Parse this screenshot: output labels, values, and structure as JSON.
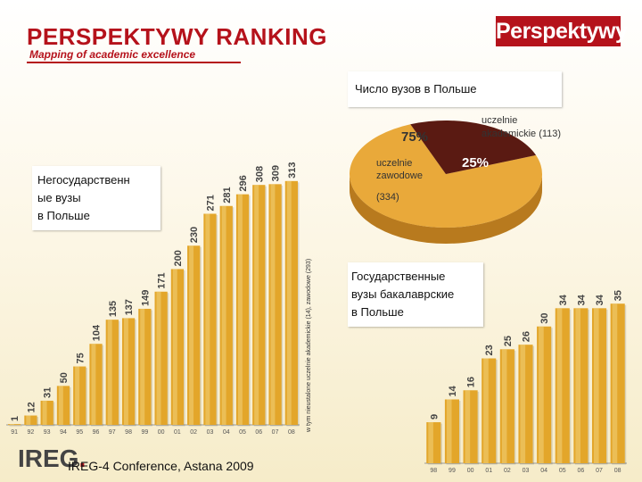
{
  "header": {
    "title": "PERSPEKTYWY RANKING",
    "subtitle": "Mapping of academic excellence",
    "logo_text": "Perspektywy"
  },
  "footer": {
    "logo_text": "IREG",
    "text": "IREG-4 Conference, Astana 2009"
  },
  "labels": {
    "pie_box": "Число вузов в Польше",
    "nonstate_line1": "Негосударственн",
    "nonstate_line2": "ые вузы",
    "nonstate_line3": "в Польше",
    "state_line1": "Государственные",
    "state_line2": "вузы бакалаврские",
    "state_line3": "в Польше",
    "vertical_note": "w tym nieustalone uczelnie akademickie (14), zawodowe (293)"
  },
  "colors": {
    "accent": "#b5121b",
    "bar": "#e3a62a",
    "bar_light": "#f3d27a",
    "pie_light": "#e9a93a",
    "pie_dark": "#5a1a12"
  },
  "chart_data": [
    {
      "type": "bar",
      "title": "Негосударственные вузы в Польше",
      "categories": [
        "91",
        "92",
        "93",
        "94",
        "95",
        "96",
        "97",
        "98",
        "99",
        "00",
        "01",
        "02",
        "03",
        "04",
        "05",
        "06",
        "07",
        "08"
      ],
      "values": [
        1,
        12,
        31,
        50,
        75,
        104,
        135,
        137,
        149,
        171,
        200,
        230,
        271,
        281,
        296,
        308,
        309,
        313
      ],
      "ylim": [
        0,
        330
      ]
    },
    {
      "type": "pie",
      "title": "Число вузов в Польше",
      "slices": [
        {
          "label_line1": "uczelnie",
          "label_line2": "zawodowe",
          "label_line3": "(334)",
          "percent_label": "75%",
          "value": 334
        },
        {
          "label_line1": "uczelnie",
          "label_line2": "akademickie (113)",
          "percent_label": "25%",
          "value": 113
        }
      ]
    },
    {
      "type": "bar",
      "title": "Государственные вузы бакалаврские в Польше",
      "categories": [
        "98",
        "99",
        "00",
        "01",
        "02",
        "03",
        "04",
        "05",
        "06",
        "07",
        "08"
      ],
      "values": [
        9,
        14,
        16,
        23,
        25,
        26,
        30,
        34,
        34,
        34,
        35
      ],
      "ylim": [
        0,
        37
      ]
    }
  ]
}
